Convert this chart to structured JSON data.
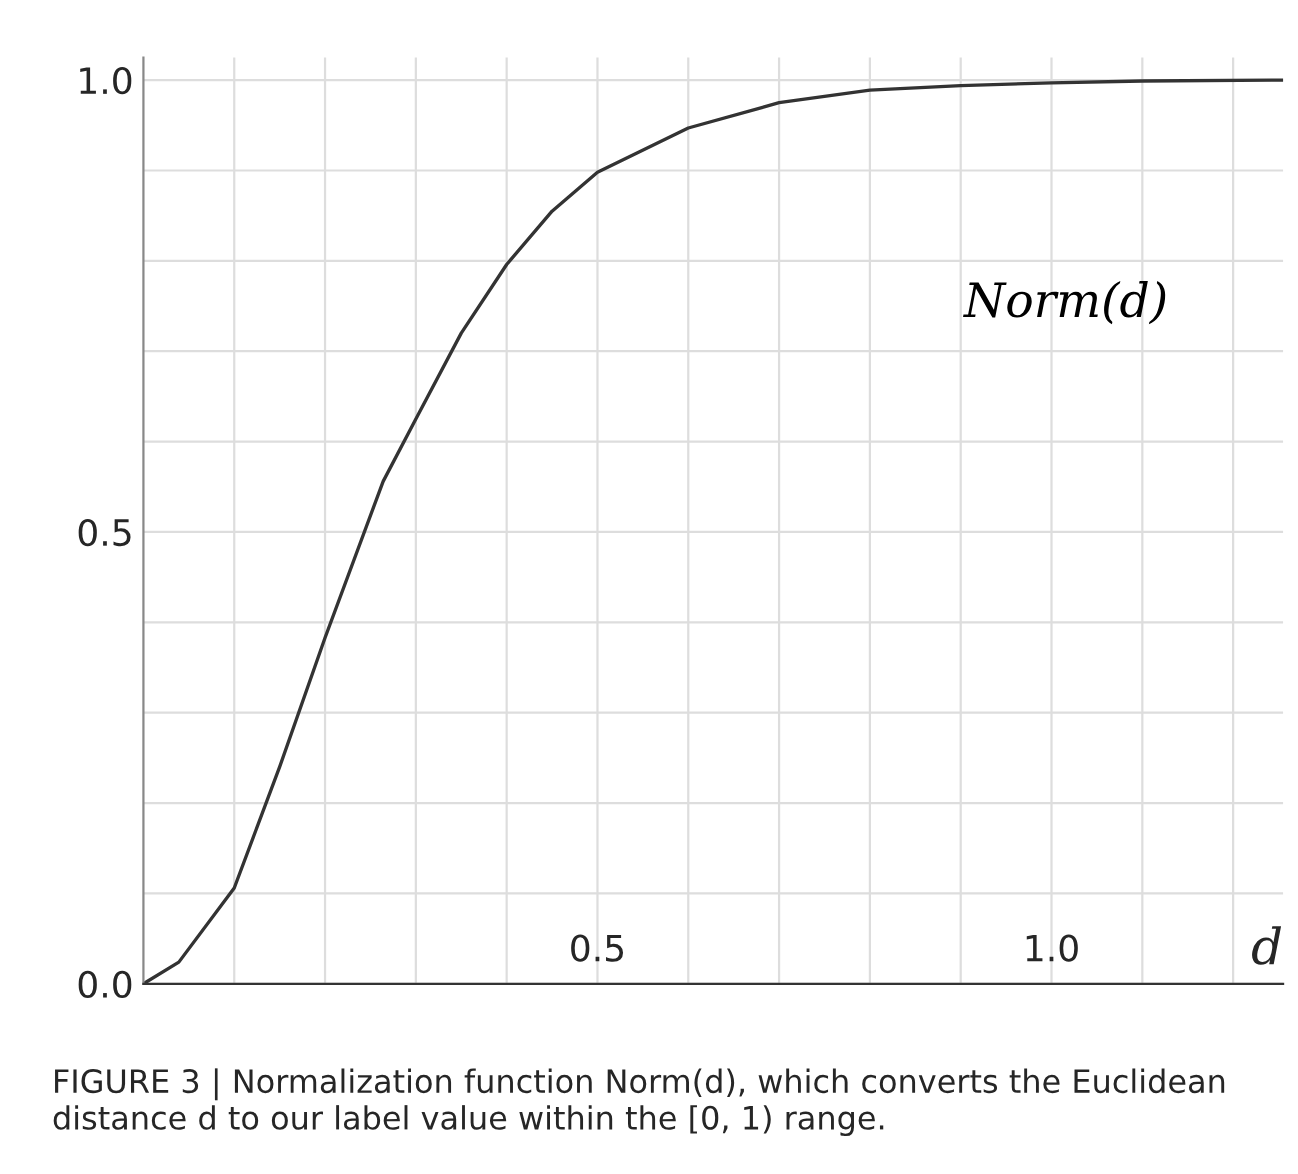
{
  "chart_data": {
    "type": "line",
    "xlabel": "d",
    "x": [
      0,
      0.039,
      0.1,
      0.15,
      0.2,
      0.264,
      0.3,
      0.35,
      0.4,
      0.45,
      0.5,
      0.6,
      0.7,
      0.8,
      0.9,
      1.0,
      1.1,
      1.255
    ],
    "series": [
      {
        "name": "Norm(d)",
        "color": "#333333",
        "values": [
          0,
          0.024,
          0.106,
          0.24,
          0.383,
          0.556,
          0.625,
          0.72,
          0.796,
          0.855,
          0.898,
          0.947,
          0.975,
          0.989,
          0.994,
          0.997,
          0.999,
          1.0
        ]
      }
    ],
    "xlim": [
      0,
      1.255
    ],
    "ylim": [
      0,
      1.025
    ],
    "xticks": [
      {
        "value": 0.1,
        "label": null
      },
      {
        "value": 0.2,
        "label": null
      },
      {
        "value": 0.3,
        "label": null
      },
      {
        "value": 0.4,
        "label": null
      },
      0.5,
      {
        "value": 0.6,
        "label": null
      },
      {
        "value": 0.7,
        "label": null
      },
      {
        "value": 0.8,
        "label": null
      },
      {
        "value": 0.9,
        "label": null
      },
      {
        "value": 1.0,
        "label": "1.0"
      },
      {
        "value": 1.1,
        "label": null
      },
      {
        "value": 1.2,
        "label": null
      }
    ],
    "yticks": [
      {
        "value": 0,
        "label": "0.0"
      },
      {
        "value": 0.1,
        "label": null
      },
      {
        "value": 0.2,
        "label": null
      },
      {
        "value": 0.3,
        "label": null
      },
      {
        "value": 0.4,
        "label": null
      },
      0.5,
      {
        "value": 0.6,
        "label": null
      },
      {
        "value": 0.7,
        "label": null
      },
      {
        "value": 0.8,
        "label": null
      },
      {
        "value": 0.9,
        "label": null
      },
      {
        "value": 1.0,
        "label": "1.0"
      }
    ],
    "grid": true,
    "marker": "none",
    "line_style": "solid",
    "annotations": [
      "FIGURE 3 | Normalization function Norm(d), which converts the Euclidean distance d to our label value within the [0, 1) range."
    ]
  }
}
